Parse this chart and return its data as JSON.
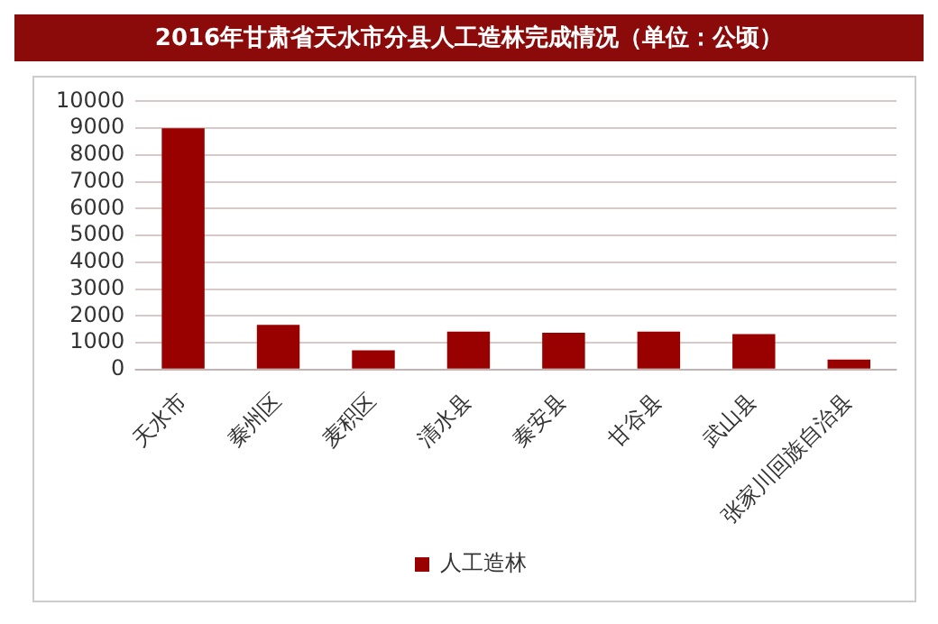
{
  "chart_data": {
    "type": "bar",
    "title": "2016年甘肃省天水市分县人工造林完成情况（单位：公顷）",
    "categories": [
      "天水市",
      "秦州区",
      "麦积区",
      "清水县",
      "秦安县",
      "甘谷县",
      "武山县",
      "张家川回族自治县"
    ],
    "series": [
      {
        "name": "人工造林",
        "color": "#990000",
        "values": [
          9000,
          1670,
          720,
          1420,
          1370,
          1420,
          1320,
          370
        ]
      }
    ],
    "ylim": [
      0,
      10000
    ],
    "yticks": [
      0,
      1000,
      2000,
      3000,
      4000,
      5000,
      6000,
      7000,
      8000,
      9000,
      10000
    ],
    "grid": "y",
    "legend": "bottom"
  }
}
